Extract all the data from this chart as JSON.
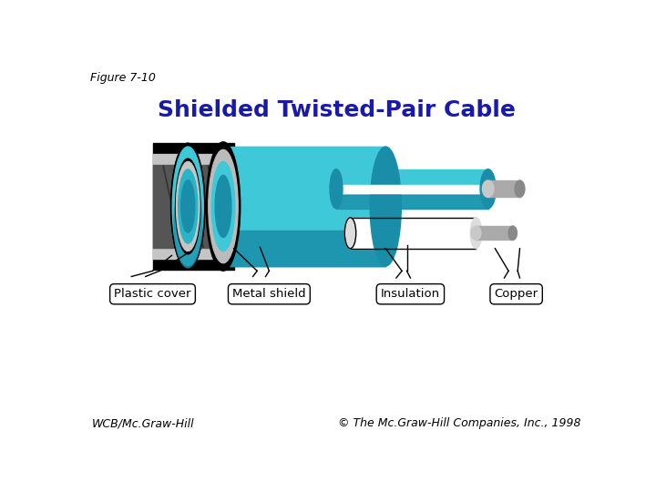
{
  "title": "Shielded Twisted-Pair Cable",
  "figure_label": "Figure 7-10",
  "footer_left": "WCB/Mc.Graw-Hill",
  "footer_right": "© The Mc.Graw-Hill Companies, Inc., 1998",
  "labels": [
    "Plastic cover",
    "Metal shield",
    "Insulation",
    "Copper"
  ],
  "title_color": "#1a1aaa",
  "bg_color": "#ffffff",
  "teal": "#3ec8d8",
  "teal_dark": "#1a8ea8",
  "teal_mid": "#2ab4c8",
  "black": "#111111",
  "gray_light": "#c8c8c8",
  "gray_dark": "#888888",
  "gray_mid": "#aaaaaa",
  "white": "#ffffff"
}
